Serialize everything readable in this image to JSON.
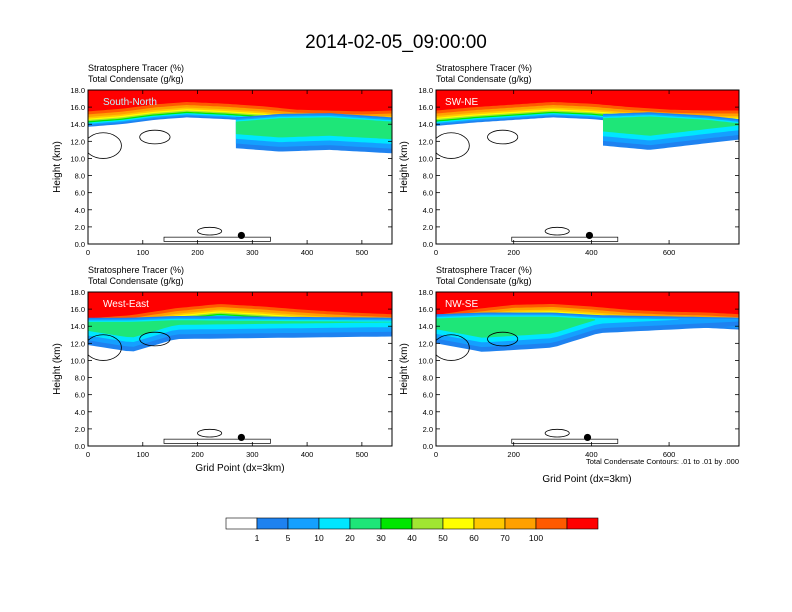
{
  "title": "2014-02-05_09:00:00",
  "panel_line1": "Stratosphere Tracer   (%)",
  "panel_line2": "Total Condensate   (g/kg)",
  "ylabel": "Height (km)",
  "xlabel": "Grid Point (dx=3km)",
  "contour_note": "Total Condensate Contours: .01 to .01 by .000",
  "y_ticks": [
    "0.0",
    "2.0",
    "4.0",
    "6.0",
    "8.0",
    "10.0",
    "12.0",
    "14.0",
    "16.0",
    "18.0"
  ],
  "legend": {
    "colors": [
      "#ffffff",
      "#1e82f0",
      "#14a0ff",
      "#00e6ff",
      "#1ee678",
      "#00e600",
      "#a0e632",
      "#ffff00",
      "#ffc800",
      "#ffa000",
      "#ff5a00",
      "#ff0000"
    ],
    "labels": [
      "1",
      "5",
      "10",
      "20",
      "30",
      "40",
      "50",
      "60",
      "70",
      "100"
    ]
  },
  "chart_data": [
    {
      "type": "heatmap",
      "panel_label": "South-North",
      "xlim": [
        0,
        555
      ],
      "ylim": [
        0,
        18
      ],
      "x_ticks": [
        "0",
        "100",
        "200",
        "300",
        "400",
        "500"
      ],
      "x_tick_values": [
        0,
        100,
        200,
        300,
        400,
        500
      ],
      "marker_x": 280,
      "marker_y": 1.0,
      "tropopause_km": [
        [
          0,
          15.8
        ],
        [
          60,
          16.1
        ],
        [
          120,
          16.6
        ],
        [
          180,
          16.9
        ],
        [
          250,
          16.7
        ],
        [
          320,
          16.4
        ],
        [
          380,
          16.0
        ],
        [
          440,
          15.9
        ],
        [
          500,
          15.8
        ],
        [
          555,
          15.9
        ]
      ],
      "low_band": [
        [
          270,
          11.2,
          14.8
        ],
        [
          350,
          10.8,
          15.2
        ],
        [
          440,
          11.0,
          15.3
        ],
        [
          555,
          10.6,
          14.8
        ]
      ]
    },
    {
      "type": "heatmap",
      "panel_label": "SW-NE",
      "xlim": [
        0,
        780
      ],
      "ylim": [
        0,
        18
      ],
      "x_ticks": [
        "0",
        "200",
        "400",
        "600"
      ],
      "x_tick_values": [
        0,
        200,
        400,
        600
      ],
      "marker_x": 395,
      "marker_y": 1.0,
      "tropopause_km": [
        [
          0,
          15.9
        ],
        [
          100,
          16.3
        ],
        [
          200,
          16.6
        ],
        [
          300,
          16.9
        ],
        [
          400,
          16.7
        ],
        [
          500,
          16.3
        ],
        [
          600,
          16.0
        ],
        [
          700,
          15.9
        ],
        [
          780,
          15.9
        ]
      ],
      "low_band": [
        [
          430,
          11.5,
          15.2
        ],
        [
          550,
          11.0,
          15.4
        ],
        [
          700,
          11.8,
          15.0
        ],
        [
          780,
          12.2,
          14.6
        ]
      ]
    },
    {
      "type": "heatmap",
      "panel_label": "West-East",
      "xlim": [
        0,
        555
      ],
      "ylim": [
        0,
        18
      ],
      "x_ticks": [
        "0",
        "100",
        "200",
        "300",
        "400",
        "500"
      ],
      "x_tick_values": [
        0,
        100,
        200,
        300,
        400,
        500
      ],
      "marker_x": 280,
      "marker_y": 1.0,
      "tropopause_km": [
        [
          0,
          15.2
        ],
        [
          80,
          15.6
        ],
        [
          160,
          16.4
        ],
        [
          240,
          16.9
        ],
        [
          320,
          16.6
        ],
        [
          400,
          16.2
        ],
        [
          480,
          15.9
        ],
        [
          555,
          15.7
        ]
      ],
      "low_band": [
        [
          0,
          11.8,
          15.0
        ],
        [
          80,
          11.0,
          15.0
        ],
        [
          160,
          12.5,
          15.2
        ],
        [
          555,
          12.8,
          15.0
        ]
      ]
    },
    {
      "type": "heatmap",
      "panel_label": "NW-SE",
      "xlim": [
        0,
        780
      ],
      "ylim": [
        0,
        18
      ],
      "x_ticks": [
        "0",
        "200",
        "400",
        "600"
      ],
      "x_tick_values": [
        0,
        200,
        400,
        600
      ],
      "marker_x": 390,
      "marker_y": 1.0,
      "tropopause_km": [
        [
          0,
          15.6
        ],
        [
          100,
          16.3
        ],
        [
          200,
          16.8
        ],
        [
          300,
          16.9
        ],
        [
          400,
          16.6
        ],
        [
          500,
          16.2
        ],
        [
          600,
          16.0
        ],
        [
          700,
          15.9
        ],
        [
          780,
          15.7
        ]
      ],
      "low_band": [
        [
          0,
          12.0,
          15.4
        ],
        [
          120,
          11.0,
          15.6
        ],
        [
          300,
          11.5,
          15.6
        ],
        [
          420,
          13.2,
          15.3
        ],
        [
          780,
          14.0,
          15.0
        ]
      ]
    }
  ]
}
